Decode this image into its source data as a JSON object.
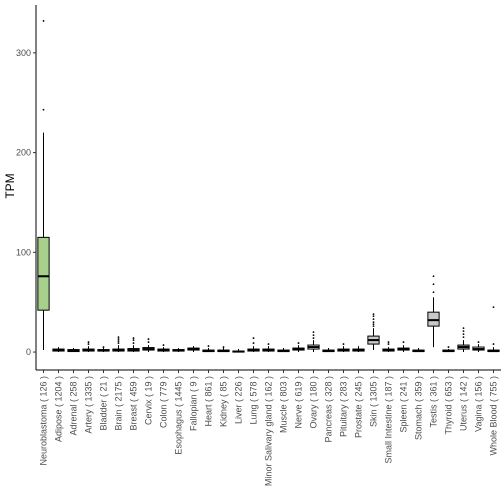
{
  "chart_data": {
    "type": "boxplot",
    "title": "",
    "xlabel": "",
    "ylabel": "TPM",
    "ylim": [
      -18,
      348
    ],
    "yticks": [
      0,
      100,
      200,
      300
    ],
    "grid": false,
    "legend": "none",
    "highlight_color": "#a8d08d",
    "gray_color": "#c8c8c8",
    "default_color": "#ffffff",
    "categories": [
      "Neuroblastoma ( 126 )",
      "Adipose ( 1204 )",
      "Adrenal ( 258 )",
      "Artery ( 1335 )",
      "Bladder ( 21 )",
      "Brain ( 2175 )",
      "Breast ( 459 )",
      "Cervix ( 19 )",
      "Colon ( 779 )",
      "Esophagus ( 1445 )",
      "Fallopian ( 9 )",
      "Heart ( 861 )",
      "Kidney ( 85 )",
      "Liver ( 226 )",
      "Lung ( 578 )",
      "Minor Salivary gland ( 162 )",
      "Muscle ( 803 )",
      "Nerve ( 619 )",
      "Ovary ( 180 )",
      "Pancreas ( 328 )",
      "Pituitary ( 283 )",
      "Prostate ( 245 )",
      "Skin ( 1305 )",
      "Small Intestine ( 187 )",
      "Spleen ( 241 )",
      "Stomach ( 359 )",
      "Testis ( 361 )",
      "Thyroid ( 653 )",
      "Uterus ( 142 )",
      "Vagina ( 156 )",
      "Whole Blood ( 755 )"
    ],
    "boxes": [
      {
        "min": 2,
        "q1": 42,
        "median": 76,
        "q3": 115,
        "max": 220,
        "outliers": [
          243,
          332
        ],
        "fill": "highlight"
      },
      {
        "min": 0,
        "q1": 1,
        "median": 2,
        "q3": 3,
        "max": 5,
        "outliers": [],
        "fill": "default"
      },
      {
        "min": 0,
        "q1": 0.5,
        "median": 1.5,
        "q3": 2.5,
        "max": 4,
        "outliers": [],
        "fill": "default"
      },
      {
        "min": 0,
        "q1": 1,
        "median": 2,
        "q3": 3,
        "max": 6,
        "outliers": [
          8,
          10
        ],
        "fill": "default"
      },
      {
        "min": 0,
        "q1": 1,
        "median": 1.5,
        "q3": 2.5,
        "max": 4,
        "outliers": [
          5
        ],
        "fill": "default"
      },
      {
        "min": 0,
        "q1": 1,
        "median": 2,
        "q3": 3,
        "max": 7,
        "outliers": [
          9,
          11,
          13,
          15
        ],
        "fill": "default"
      },
      {
        "min": 0,
        "q1": 1,
        "median": 2,
        "q3": 3.5,
        "max": 7,
        "outliers": [
          9,
          12,
          14
        ],
        "fill": "default"
      },
      {
        "min": 0,
        "q1": 2,
        "median": 3,
        "q3": 4.5,
        "max": 7,
        "outliers": [
          10,
          13
        ],
        "fill": "default"
      },
      {
        "min": 0,
        "q1": 1,
        "median": 2,
        "q3": 3,
        "max": 5,
        "outliers": [
          7
        ],
        "fill": "default"
      },
      {
        "min": 0,
        "q1": 1,
        "median": 1.5,
        "q3": 2.5,
        "max": 4,
        "outliers": [],
        "fill": "default"
      },
      {
        "min": 0,
        "q1": 2,
        "median": 3,
        "q3": 4,
        "max": 6,
        "outliers": [],
        "fill": "default"
      },
      {
        "min": 0,
        "q1": 0.5,
        "median": 1,
        "q3": 2,
        "max": 4,
        "outliers": [
          6
        ],
        "fill": "default"
      },
      {
        "min": 0,
        "q1": 0.5,
        "median": 1,
        "q3": 2,
        "max": 4,
        "outliers": [
          5
        ],
        "fill": "default"
      },
      {
        "min": 0,
        "q1": 0,
        "median": 0.5,
        "q3": 1,
        "max": 3,
        "outliers": [],
        "fill": "default"
      },
      {
        "min": 0,
        "q1": 1,
        "median": 2,
        "q3": 3,
        "max": 6,
        "outliers": [
          9,
          14
        ],
        "fill": "default"
      },
      {
        "min": 0,
        "q1": 1,
        "median": 2,
        "q3": 3,
        "max": 6,
        "outliers": [
          8
        ],
        "fill": "default"
      },
      {
        "min": 0,
        "q1": 0.5,
        "median": 1,
        "q3": 2,
        "max": 4,
        "outliers": [],
        "fill": "default"
      },
      {
        "min": 0,
        "q1": 2,
        "median": 3,
        "q3": 4,
        "max": 7,
        "outliers": [
          9
        ],
        "fill": "default"
      },
      {
        "min": 0,
        "q1": 3,
        "median": 5,
        "q3": 7,
        "max": 12,
        "outliers": [
          14,
          17,
          20
        ],
        "fill": "default"
      },
      {
        "min": 0,
        "q1": 0.5,
        "median": 1,
        "q3": 2,
        "max": 4,
        "outliers": [],
        "fill": "default"
      },
      {
        "min": 0,
        "q1": 1,
        "median": 2,
        "q3": 3,
        "max": 6,
        "outliers": [
          8
        ],
        "fill": "default"
      },
      {
        "min": 0,
        "q1": 1,
        "median": 2,
        "q3": 3,
        "max": 6,
        "outliers": [],
        "fill": "default"
      },
      {
        "min": 2,
        "q1": 8,
        "median": 12,
        "q3": 16,
        "max": 24,
        "outliers": [
          26,
          28,
          30,
          33,
          36,
          38
        ],
        "fill": "gray"
      },
      {
        "min": 0,
        "q1": 1,
        "median": 2,
        "q3": 3,
        "max": 5,
        "outliers": [
          8,
          10
        ],
        "fill": "default"
      },
      {
        "min": 0,
        "q1": 2,
        "median": 3,
        "q3": 4,
        "max": 7,
        "outliers": [
          10
        ],
        "fill": "default"
      },
      {
        "min": 0,
        "q1": 0.5,
        "median": 1,
        "q3": 2,
        "max": 4,
        "outliers": [],
        "fill": "default"
      },
      {
        "min": 5,
        "q1": 26,
        "median": 32,
        "q3": 40,
        "max": 55,
        "outliers": [
          60,
          68,
          76
        ],
        "fill": "gray"
      },
      {
        "min": 0,
        "q1": 0.5,
        "median": 1,
        "q3": 2,
        "max": 3,
        "outliers": [
          5
        ],
        "fill": "default"
      },
      {
        "min": 0,
        "q1": 3,
        "median": 5,
        "q3": 7,
        "max": 12,
        "outliers": [
          15,
          18,
          21,
          24
        ],
        "fill": "gray"
      },
      {
        "min": 0,
        "q1": 2,
        "median": 3,
        "q3": 5,
        "max": 8,
        "outliers": [
          10
        ],
        "fill": "default"
      },
      {
        "min": 0,
        "q1": 0.5,
        "median": 1,
        "q3": 2,
        "max": 5,
        "outliers": [
          8,
          45
        ],
        "fill": "default"
      }
    ]
  }
}
